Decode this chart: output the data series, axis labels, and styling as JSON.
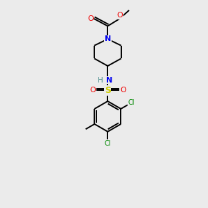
{
  "bg_color": "#ebebeb",
  "bond_color": "#000000",
  "N_color": "#0000ee",
  "O_color": "#ee0000",
  "S_color": "#cccc00",
  "Cl_color": "#008800",
  "H_color": "#448888",
  "line_width": 1.4,
  "figsize": [
    3.0,
    3.0
  ],
  "dpi": 100,
  "xlim": [
    0,
    10
  ],
  "ylim": [
    0,
    11
  ]
}
